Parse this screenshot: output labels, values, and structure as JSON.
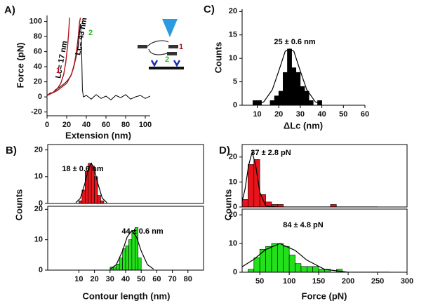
{
  "chart_data": [
    {
      "type": "line",
      "panel": "A)",
      "ylabel": "Force (pN)",
      "xlabel": "Extension (nm)",
      "xlim": [
        0,
        105
      ],
      "ylim": [
        -25,
        108
      ],
      "xticks": [
        0,
        20,
        40,
        60,
        80,
        100
      ],
      "yticks": [
        -20,
        0,
        20,
        40,
        60,
        80,
        100
      ],
      "series": [
        {
          "color": "#000000",
          "x": [
            0,
            3,
            6,
            9,
            12,
            15,
            18,
            21,
            24,
            27,
            30,
            32,
            33,
            34,
            35,
            36,
            37,
            40,
            45,
            50,
            55,
            60,
            65,
            70,
            75,
            80,
            85,
            90,
            95,
            100,
            105
          ],
          "values": [
            2,
            5,
            6,
            10,
            12,
            15,
            18,
            22,
            28,
            38,
            55,
            70,
            85,
            97,
            75,
            10,
            0,
            2,
            -3,
            3,
            -2,
            1,
            -4,
            2,
            -1,
            3,
            -3,
            0,
            2,
            -2,
            1
          ]
        },
        {
          "color": "#b5121b",
          "x": [
            0,
            5,
            10,
            14,
            17,
            19,
            21,
            22,
            23
          ],
          "values": [
            2,
            5,
            10,
            18,
            30,
            45,
            68,
            85,
            105
          ]
        },
        {
          "color": "#b5121b",
          "x": [
            0,
            10,
            20,
            25,
            28,
            30,
            32,
            33,
            34
          ],
          "values": [
            2,
            8,
            18,
            30,
            45,
            60,
            82,
            98,
            105
          ]
        }
      ],
      "annotations": [
        {
          "text": "Lc= 17 nm",
          "color": "#000000"
        },
        {
          "text": "Lc= 43 nm",
          "color": "#000000"
        },
        {
          "text": "1",
          "color": "#b5121b"
        },
        {
          "text": "2",
          "color": "#22c41a"
        },
        {
          "text": "1",
          "color": "#b5121b"
        },
        {
          "text": "2",
          "color": "#22c41a"
        }
      ]
    },
    {
      "type": "histogram",
      "panel": "C)",
      "ylabel": "Counts",
      "xlabel": "ΔLc (nm)",
      "color": "#000000",
      "xlim": [
        3,
        60
      ],
      "ylim": [
        0,
        20.5
      ],
      "xticks": [
        10,
        20,
        30,
        40,
        50,
        60
      ],
      "yticks": [
        0,
        5,
        10,
        15,
        20
      ],
      "bins": [
        8,
        10,
        12,
        14,
        16,
        18,
        20,
        22,
        24,
        26,
        28,
        30,
        32,
        34,
        36,
        38,
        40
      ],
      "counts": [
        1,
        1,
        0,
        0,
        1,
        2,
        3,
        7,
        12,
        8,
        7,
        4,
        3,
        1,
        0,
        1
      ],
      "fit": {
        "x": [
          8,
          13,
          17,
          20,
          23,
          25,
          27,
          30,
          33,
          37,
          40
        ],
        "values": [
          0,
          0.7,
          3.3,
          7.3,
          11.5,
          12,
          11.5,
          7.3,
          3.3,
          0.7,
          0.1
        ]
      },
      "annotations": [
        {
          "text": "25 ± 0.6 nm",
          "color": "#000000"
        }
      ]
    },
    {
      "type": "histogram",
      "panel": "B)",
      "ylabel": "Counts",
      "color": "#e8141b",
      "xlim": [
        -10,
        90
      ],
      "ylim": [
        0,
        22
      ],
      "yticks": [
        0,
        10,
        20
      ],
      "bins": [
        10,
        12,
        14,
        16,
        18,
        20,
        22,
        24,
        26
      ],
      "counts": [
        1,
        5,
        12,
        15,
        14,
        10,
        3,
        1
      ],
      "fit": {
        "x": [
          8,
          11,
          14,
          16,
          18,
          20,
          22,
          25,
          28
        ],
        "values": [
          0.3,
          2,
          7.8,
          12.7,
          15,
          12.7,
          7.8,
          2,
          0.3
        ]
      },
      "annotations": [
        {
          "text": "18 ± 0.6 nm",
          "color": "#000000"
        }
      ]
    },
    {
      "type": "histogram",
      "xlabel": "Contour length (nm)",
      "color": "#22e01a",
      "xlim": [
        -10,
        90
      ],
      "ylim": [
        0,
        21
      ],
      "xticks": [
        10,
        20,
        30,
        40,
        50,
        60,
        70,
        80
      ],
      "yticks": [
        0,
        10,
        20
      ],
      "bins": [
        30,
        32,
        34,
        36,
        38,
        40,
        42,
        44,
        46,
        48,
        50
      ],
      "counts": [
        1,
        1,
        2,
        4,
        7,
        8,
        10,
        13,
        14,
        4
      ],
      "fit": {
        "x": [
          30,
          34,
          38,
          41,
          44,
          47,
          50,
          54,
          58
        ],
        "values": [
          0.3,
          1.8,
          6.3,
          10.9,
          13,
          10.9,
          6.3,
          1.8,
          0.3
        ]
      },
      "annotations": [
        {
          "text": "44 ± 0.6 nm",
          "color": "#000000"
        }
      ]
    },
    {
      "type": "histogram",
      "panel": "D)",
      "ylabel": "Counts",
      "color": "#e8141b",
      "xlim": [
        20,
        300
      ],
      "ylim": [
        0,
        25
      ],
      "yticks": [
        0,
        10,
        20
      ],
      "bins": [
        20,
        30,
        40,
        50,
        60,
        70,
        80,
        90,
        100,
        110,
        120,
        130,
        140,
        150,
        160,
        170,
        180
      ],
      "counts": [
        3,
        17,
        19,
        5,
        2,
        1,
        1,
        0,
        0,
        0,
        0,
        0,
        0,
        0,
        0,
        1
      ],
      "fit": {
        "x": [
          20,
          25,
          31,
          37,
          43,
          50,
          60,
          80,
          150,
          250
        ],
        "values": [
          2.3,
          7.2,
          16.6,
          22,
          16.6,
          5.9,
          0.4,
          0,
          0,
          0
        ]
      },
      "annotations": [
        {
          "text": "37 ± 2.8 pN",
          "color": "#000000"
        }
      ]
    },
    {
      "type": "histogram",
      "xlabel": "Force (pN)",
      "color": "#22e01a",
      "xlim": [
        20,
        300
      ],
      "ylim": [
        0,
        22
      ],
      "xticks": [
        50,
        100,
        150,
        200,
        250,
        300
      ],
      "yticks": [
        0,
        10,
        20
      ],
      "bins": [
        30,
        40,
        50,
        60,
        70,
        80,
        90,
        100,
        110,
        120,
        130,
        140,
        150,
        160,
        170,
        180,
        190
      ],
      "counts": [
        1,
        5,
        8,
        9,
        10,
        10,
        9,
        6,
        3,
        2,
        2,
        2,
        1,
        1,
        0,
        1
      ],
      "fit": {
        "x": [
          20,
          40,
          60,
          84,
          110,
          130,
          160,
          200,
          270
        ],
        "values": [
          1.9,
          4.5,
          7.9,
          10,
          7.6,
          4.2,
          1,
          0,
          0
        ]
      },
      "annotations": [
        {
          "text": "84 ± 4.8 pN",
          "color": "#000000"
        }
      ]
    }
  ]
}
